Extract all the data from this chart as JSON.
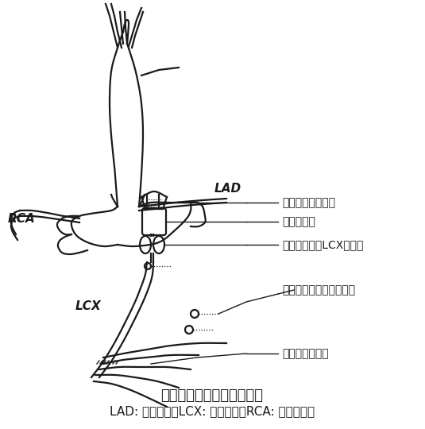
{
  "title": "液压闭合器模型制备示意图",
  "subtitle": "LAD: 左前降支；LCX: 左回旋支；RCA: 右冠状动脉",
  "label_LAD": "LAD",
  "label_RCA": "RCA",
  "label_LCX": "LCX",
  "ann1": "超声血流速度探头",
  "ann2": "液压闭合器",
  "ann3": "超声探测器（LCX直径）",
  "ann4": "超声探测器（节段长度）",
  "ann5": "远端测压用导管",
  "bg_color": "#ffffff",
  "line_color": "#1a1a1a",
  "title_fontsize": 13,
  "subtitle_fontsize": 11,
  "label_fontsize": 11,
  "annot_fontsize": 10
}
